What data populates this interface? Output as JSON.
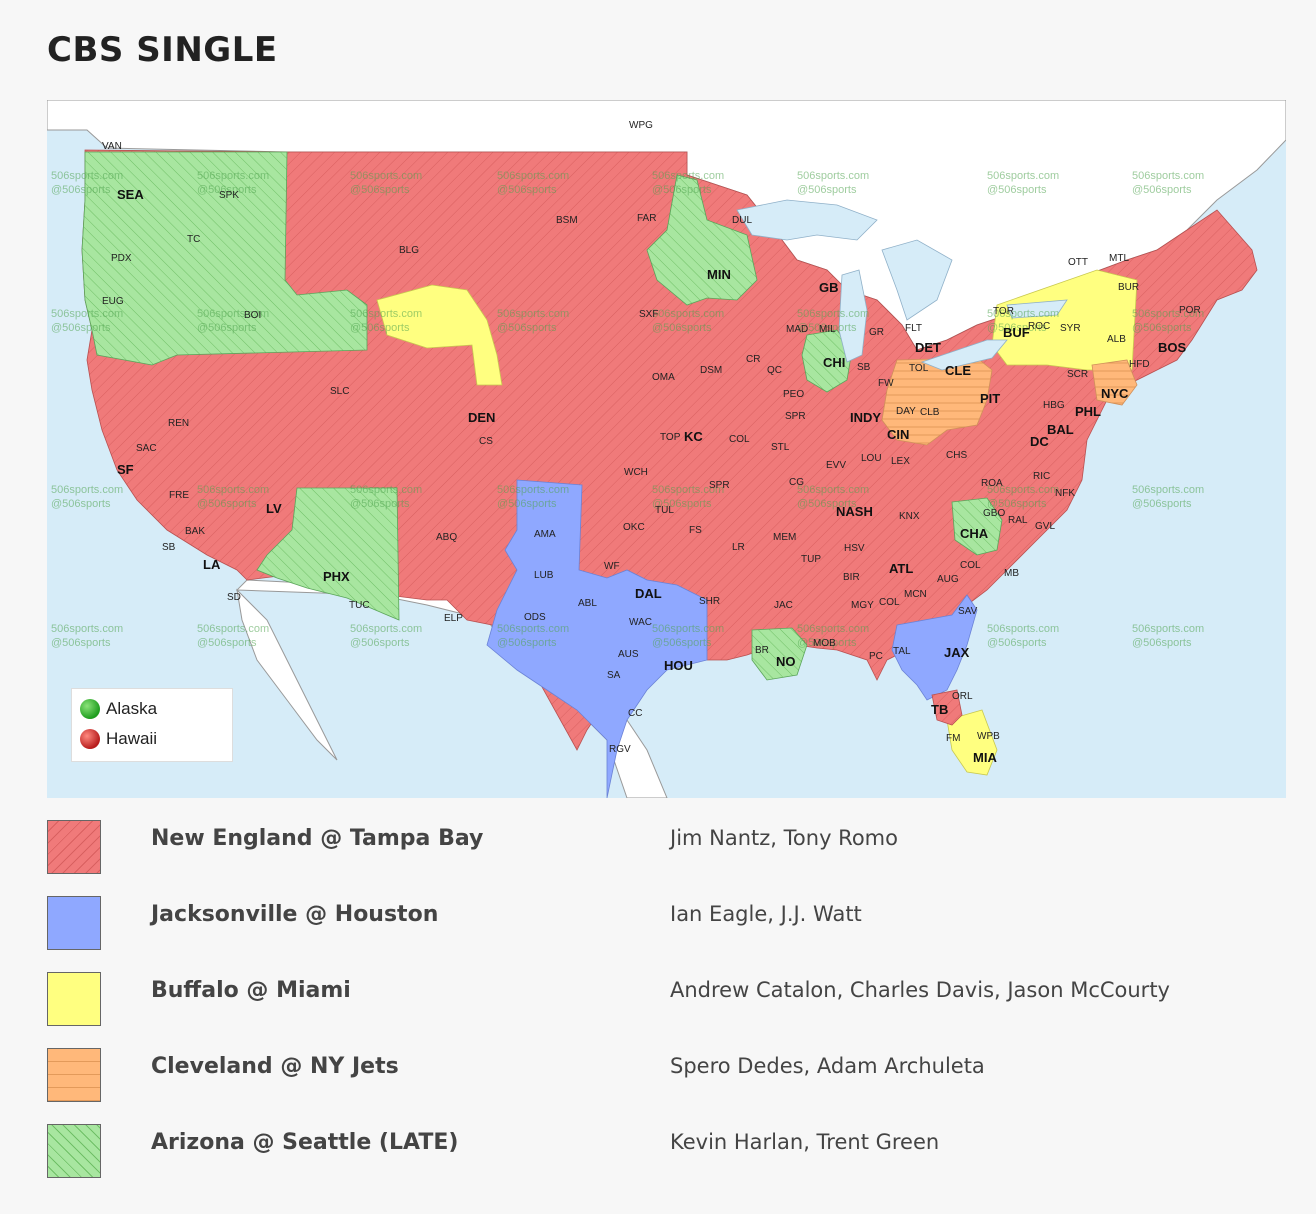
{
  "page": {
    "title": "CBS SINGLE"
  },
  "colors": {
    "new_england_tampa_bay": "#f07a7a",
    "jacksonville_houston": "#8fa8ff",
    "buffalo_miami": "#ffff80",
    "cleveland_ny_jets": "#ffb87a",
    "arizona_seattle": "#a8e6a0",
    "water": "#d6ecf8",
    "land_other": "#ffffff"
  },
  "map": {
    "watermark": [
      "506sports.com",
      "@506sports"
    ],
    "inset_legend": [
      {
        "label": "Alaska",
        "icon": "green-dot-icon"
      },
      {
        "label": "Hawaii",
        "icon": "red-dot-icon"
      }
    ],
    "cities": {
      "VAN": "VAN",
      "WPG": "WPG",
      "SEA": "SEA",
      "SPK": "SPK",
      "TC": "TC",
      "PDX": "PDX",
      "EUG": "EUG",
      "BOI": "BOI",
      "BLG": "BLG",
      "BSM": "BSM",
      "FAR": "FAR",
      "DUL": "DUL",
      "MIN": "MIN",
      "GB": "GB",
      "OTT": "OTT",
      "MTL": "MTL",
      "BUR": "BUR",
      "POR": "POR",
      "TOR": "TOR",
      "BUF": "BUF",
      "ROC": "ROC",
      "SYR": "SYR",
      "ALB": "ALB",
      "BOS": "BOS",
      "HFD": "HFD",
      "SCR": "SCR",
      "NYC": "NYC",
      "PHL": "PHL",
      "HBG": "HBG",
      "BAL": "BAL",
      "DC": "DC",
      "PIT": "PIT",
      "CLE": "CLE",
      "TOL": "TOL",
      "DET": "DET",
      "FLT": "FLT",
      "GR": "GR",
      "MIL": "MIL",
      "MAD": "MAD",
      "CHI": "CHI",
      "SB": "SB",
      "FW": "FW",
      "INDY": "INDY",
      "DAY": "DAY",
      "CLB": "CLB",
      "CIN": "CIN",
      "LOU": "LOU",
      "LEX": "LEX",
      "CHS": "CHS",
      "ROA": "ROA",
      "RIC": "RIC",
      "NFK": "NFK",
      "GBO": "GBO",
      "RAL": "RAL",
      "GVL": "GVL",
      "CHA": "CHA",
      "COL": "COL",
      "MB": "MB",
      "AUG": "AUG",
      "SAV": "SAV",
      "JAX": "JAX",
      "ORL": "ORL",
      "TB": "TB",
      "FM": "FM",
      "WPB": "WPB",
      "MIA": "MIA",
      "TAL": "TAL",
      "PC": "PC",
      "MOB": "MOB",
      "NO": "NO",
      "BR": "BR",
      "JAC": "JAC",
      "MGY": "MGY",
      "BIR": "BIR",
      "ATL": "ATL",
      "MCN": "MCN",
      "COLGA": "COL",
      "HSV": "HSV",
      "KNX": "KNX",
      "NASH": "NASH",
      "EVV": "EVV",
      "CG": "CG",
      "TUP": "TUP",
      "MEM": "MEM",
      "LR": "LR",
      "FS": "FS",
      "TUL": "TUL",
      "SPR": "SPR",
      "SPRIL": "SPR",
      "STL": "STL",
      "COLMO": "COL",
      "KC": "KC",
      "TOP": "TOP",
      "WCH": "WCH",
      "OKC": "OKC",
      "WF": "WF",
      "DAL": "DAL",
      "WAC": "WAC",
      "SHR": "SHR",
      "HOU": "HOU",
      "AUS": "AUS",
      "SA": "SA",
      "CC": "CC",
      "RGV": "RGV",
      "ABL": "ABL",
      "ODS": "ODS",
      "LUB": "LUB",
      "AMA": "AMA",
      "ELP": "ELP",
      "ABQ": "ABQ",
      "DEN": "DEN",
      "CS": "CS",
      "SLC": "SLC",
      "REN": "REN",
      "SAC": "SAC",
      "SF": "SF",
      "FRE": "FRE",
      "BAK": "BAK",
      "SB_CA": "SB",
      "LA": "LA",
      "SD": "SD",
      "LV": "LV",
      "PHX": "PHX",
      "TUC": "TUC",
      "OMA": "OMA",
      "DSM": "DSM",
      "CR": "CR",
      "QC": "QC",
      "PEO": "PEO",
      "SXF": "SXF"
    }
  },
  "legend": [
    {
      "game": "New England @ Tampa Bay",
      "crew": "Jim Nantz, Tony Romo",
      "color": "#f07a7a",
      "pattern": "diag"
    },
    {
      "game": "Jacksonville @ Houston",
      "crew": "Ian Eagle, J.J. Watt",
      "color": "#8fa8ff",
      "pattern": "none"
    },
    {
      "game": "Buffalo @ Miami",
      "crew": "Andrew Catalon, Charles Davis, Jason McCourty",
      "color": "#ffff80",
      "pattern": "none"
    },
    {
      "game": "Cleveland @ NY Jets",
      "crew": "Spero Dedes, Adam Archuleta",
      "color": "#ffb87a",
      "pattern": "horiz"
    },
    {
      "game": "Arizona @ Seattle (LATE)",
      "crew": "Kevin Harlan, Trent Green",
      "color": "#a8e6a0",
      "pattern": "diag-rev"
    }
  ]
}
